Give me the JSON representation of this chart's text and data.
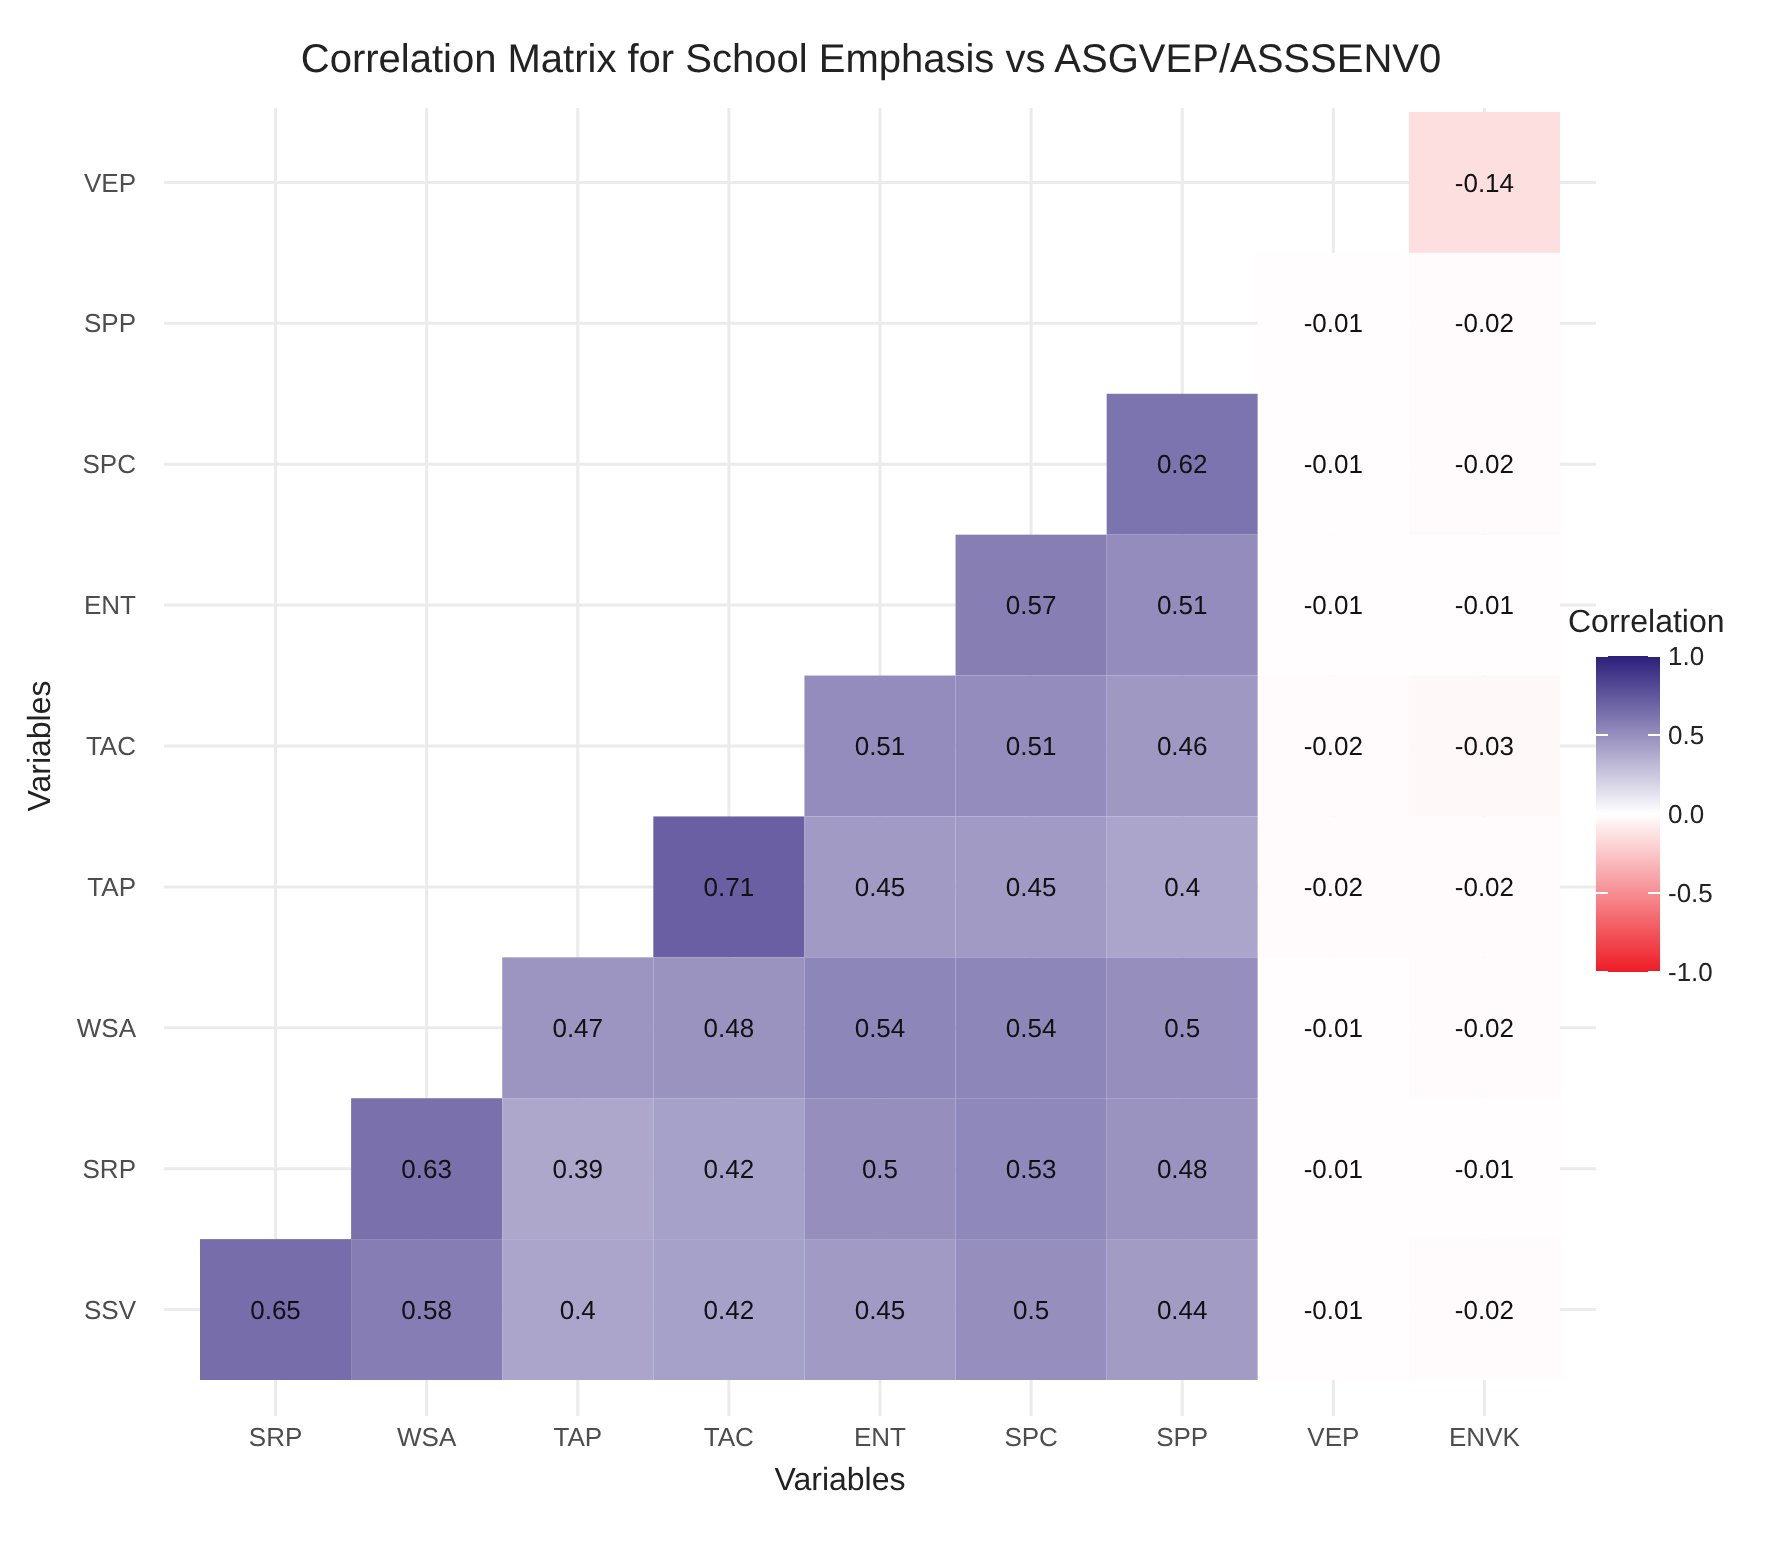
{
  "chart_data": {
    "type": "heatmap",
    "title": "Correlation Matrix for School Emphasis vs ASGVEP/ASSSENV0",
    "xlabel": "Variables",
    "ylabel": "Variables",
    "clabel": "Correlation",
    "categories": [
      "SRP",
      "WSA",
      "TAP",
      "TAC",
      "ENT",
      "SPC",
      "SPP",
      "VEP",
      "ENVK"
    ],
    "y_categories": [
      "VEP",
      "SPP",
      "SPC",
      "ENT",
      "TAC",
      "TAP",
      "WSA",
      "SRP",
      "SSV"
    ],
    "cells": [
      [
        null,
        null,
        null,
        null,
        null,
        null,
        null,
        null,
        -0.14
      ],
      [
        null,
        null,
        null,
        null,
        null,
        null,
        null,
        -0.01,
        -0.02
      ],
      [
        null,
        null,
        null,
        null,
        null,
        null,
        0.62,
        -0.01,
        -0.02
      ],
      [
        null,
        null,
        null,
        null,
        null,
        0.57,
        0.51,
        -0.01,
        -0.01
      ],
      [
        null,
        null,
        null,
        null,
        0.51,
        0.51,
        0.46,
        -0.02,
        -0.03
      ],
      [
        null,
        null,
        null,
        0.71,
        0.45,
        0.45,
        0.4,
        -0.02,
        -0.02
      ],
      [
        null,
        null,
        0.47,
        0.48,
        0.54,
        0.54,
        0.5,
        -0.01,
        -0.02
      ],
      [
        null,
        0.63,
        0.39,
        0.42,
        0.5,
        0.53,
        0.48,
        -0.01,
        -0.01
      ],
      [
        0.65,
        0.58,
        0.4,
        0.42,
        0.45,
        0.5,
        0.44,
        -0.01,
        -0.02
      ]
    ],
    "clim": [
      -1,
      1
    ],
    "cticks": [
      {
        "value": 1,
        "label": "1.0"
      },
      {
        "value": 0.5,
        "label": "0.5"
      },
      {
        "value": 0,
        "label": "0.0"
      },
      {
        "value": -0.5,
        "label": "-0.5"
      },
      {
        "value": -1,
        "label": "-1.0"
      }
    ],
    "grid": true,
    "data_labels": true
  }
}
